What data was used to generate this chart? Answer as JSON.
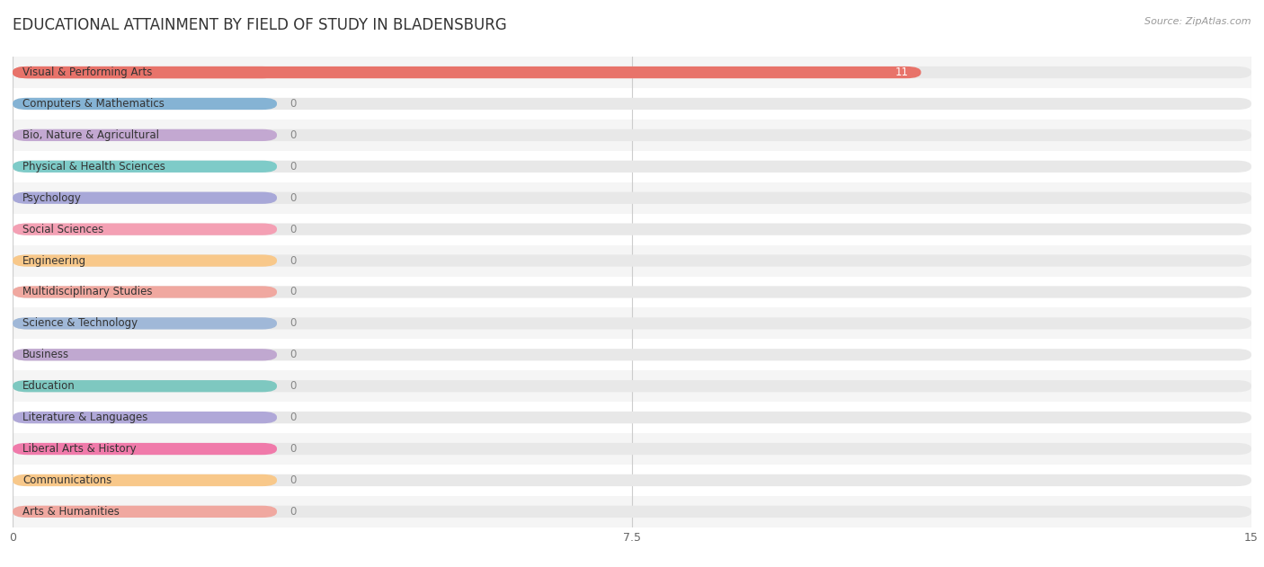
{
  "title": "EDUCATIONAL ATTAINMENT BY FIELD OF STUDY IN BLADENSBURG",
  "source": "Source: ZipAtlas.com",
  "categories": [
    "Visual & Performing Arts",
    "Computers & Mathematics",
    "Bio, Nature & Agricultural",
    "Physical & Health Sciences",
    "Psychology",
    "Social Sciences",
    "Engineering",
    "Multidisciplinary Studies",
    "Science & Technology",
    "Business",
    "Education",
    "Literature & Languages",
    "Liberal Arts & History",
    "Communications",
    "Arts & Humanities"
  ],
  "values": [
    11,
    0,
    0,
    0,
    0,
    0,
    0,
    0,
    0,
    0,
    0,
    0,
    0,
    0,
    0
  ],
  "bar_colors": [
    "#E8736A",
    "#85B3D4",
    "#C3A8D1",
    "#7ECBC8",
    "#A8A8D8",
    "#F4A0B4",
    "#F8C88A",
    "#F0A8A0",
    "#A0B8D8",
    "#C0A8D0",
    "#7EC8C0",
    "#B0A8D8",
    "#F07AAA",
    "#F8C88A",
    "#F0A8A0"
  ],
  "bg_colors": [
    "#F5F5F5",
    "#FFFFFF",
    "#F5F5F5",
    "#FFFFFF",
    "#F5F5F5",
    "#FFFFFF",
    "#F5F5F5",
    "#FFFFFF",
    "#F5F5F5",
    "#FFFFFF",
    "#F5F5F5",
    "#FFFFFF",
    "#F5F5F5",
    "#FFFFFF",
    "#F5F5F5"
  ],
  "xlim": [
    0,
    15
  ],
  "xticks": [
    0,
    7.5,
    15
  ],
  "title_fontsize": 12,
  "label_fontsize": 8.5,
  "value_fontsize": 8.5
}
